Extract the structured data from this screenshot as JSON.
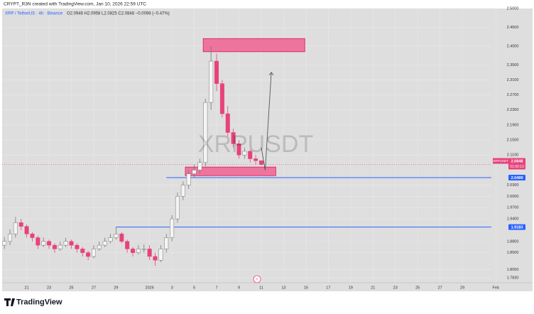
{
  "header": {
    "credit": "CRYPT_R3N created with TradingView.com, Jan 10, 2026 22:59 UTC",
    "brand": "TradingView"
  },
  "chart_data": {
    "type": "candlestick",
    "title": "XRP / TetherUS · 4h · Binance",
    "ohlc_text": "O2.0946 H2.0958 L2.0825 C2.0848 −0.0098 (−0.47%)",
    "watermark": "XRPUSDT",
    "x": [
      19,
      19.5,
      20,
      20.5,
      21,
      21.5,
      22,
      22.5,
      23,
      23.5,
      24,
      24.5,
      25,
      25.5,
      26,
      26.5,
      27,
      27.5,
      28,
      28.5,
      29,
      29.5,
      30,
      30.5,
      31,
      31.5,
      32,
      32.5,
      33,
      33.5,
      34,
      34.5,
      35,
      35.5,
      36,
      36.5,
      37,
      37.5,
      38,
      38.5,
      39,
      39.5,
      40,
      40.5,
      41,
      41.5,
      42
    ],
    "open": [
      1.87,
      1.88,
      1.9,
      1.93,
      1.92,
      1.9,
      1.89,
      1.87,
      1.88,
      1.87,
      1.86,
      1.87,
      1.88,
      1.87,
      1.86,
      1.85,
      1.84,
      1.86,
      1.87,
      1.88,
      1.89,
      1.9,
      1.88,
      1.86,
      1.85,
      1.86,
      1.86,
      1.84,
      1.83,
      1.86,
      1.89,
      1.94,
      2.0,
      2.03,
      2.06,
      2.07,
      2.09,
      2.25,
      2.36,
      2.3,
      2.22,
      2.17,
      2.14,
      2.11,
      2.12,
      2.1,
      2.095
    ],
    "high": [
      1.892,
      1.912,
      1.945,
      1.94,
      1.925,
      1.905,
      1.895,
      1.89,
      1.885,
      1.875,
      1.88,
      1.89,
      1.885,
      1.875,
      1.865,
      1.855,
      1.87,
      1.88,
      1.89,
      1.9,
      1.9183,
      1.905,
      1.885,
      1.865,
      1.87,
      1.872,
      1.87,
      1.85,
      1.87,
      1.9,
      1.95,
      2.01,
      2.04,
      2.07,
      2.085,
      2.1,
      2.26,
      2.4,
      2.38,
      2.31,
      2.24,
      2.18,
      2.15,
      2.13,
      2.125,
      2.11,
      2.0958
    ],
    "low": [
      1.86,
      1.87,
      1.89,
      1.91,
      1.89,
      1.88,
      1.86,
      1.865,
      1.86,
      1.85,
      1.855,
      1.865,
      1.86,
      1.85,
      1.84,
      1.83,
      1.835,
      1.855,
      1.865,
      1.875,
      1.885,
      1.875,
      1.85,
      1.84,
      1.845,
      1.85,
      1.83,
      1.815,
      1.825,
      1.85,
      1.88,
      1.93,
      1.99,
      2.02,
      2.05,
      2.06,
      2.08,
      2.23,
      2.28,
      2.21,
      2.16,
      2.13,
      2.1,
      2.1,
      2.09,
      2.085,
      2.0825
    ],
    "close": [
      1.88,
      1.9,
      1.93,
      1.92,
      1.9,
      1.89,
      1.87,
      1.88,
      1.87,
      1.86,
      1.87,
      1.88,
      1.87,
      1.86,
      1.85,
      1.84,
      1.86,
      1.87,
      1.88,
      1.89,
      1.9,
      1.88,
      1.86,
      1.85,
      1.86,
      1.86,
      1.84,
      1.83,
      1.86,
      1.89,
      1.94,
      2.0,
      2.03,
      2.06,
      2.07,
      2.09,
      2.25,
      2.36,
      2.3,
      2.22,
      2.17,
      2.14,
      2.11,
      2.12,
      2.1,
      2.095,
      2.0848
    ],
    "up_color": "#f4f4f4",
    "down_color": "#e8427c",
    "xlim": [
      18.8,
      62.6
    ],
    "xticks": [
      21,
      23,
      25,
      27,
      29,
      {
        "value": 32,
        "label": "2026"
      },
      {
        "value": 34,
        "label": "3"
      },
      {
        "value": 36,
        "label": "5"
      },
      {
        "value": 38,
        "label": "7"
      },
      {
        "value": 40,
        "label": "9"
      },
      {
        "value": 42,
        "label": "11"
      },
      {
        "value": 44,
        "label": "13"
      },
      {
        "value": 46,
        "label": "15"
      },
      {
        "value": 48,
        "label": "17"
      },
      {
        "value": 50,
        "label": "19"
      },
      {
        "value": 52,
        "label": "21"
      },
      {
        "value": 54,
        "label": "23"
      },
      {
        "value": 56,
        "label": "25"
      },
      {
        "value": 58,
        "label": "27"
      },
      {
        "value": 60,
        "label": "29"
      },
      {
        "value": 63,
        "label": "Feb"
      }
    ],
    "ylim": [
      1.77,
      2.5
    ],
    "yticks": [
      {
        "value": 2.5,
        "label": "2.5000"
      },
      {
        "value": 2.45,
        "label": "2.4500"
      },
      {
        "value": 2.4,
        "label": "2.4000"
      },
      {
        "value": 2.35,
        "label": "2.3500"
      },
      {
        "value": 2.31,
        "label": "2.3100"
      },
      {
        "value": 2.27,
        "label": "2.2700"
      },
      {
        "value": 2.23,
        "label": "2.2300"
      },
      {
        "value": 2.19,
        "label": "2.1900"
      },
      {
        "value": 2.15,
        "label": "2.1500"
      },
      {
        "value": 2.11,
        "label": "2.1100"
      },
      {
        "value": 2.03,
        "label": "2.0300"
      },
      {
        "value": 2.0,
        "label": "2.0000"
      },
      {
        "value": 1.97,
        "label": "1.9700"
      },
      {
        "value": 1.94,
        "label": "1.9400"
      },
      {
        "value": 1.88,
        "label": "1.8800"
      },
      {
        "value": 1.85,
        "label": "1.8500"
      },
      {
        "value": 1.805,
        "label": "1.8050"
      },
      {
        "value": 1.783,
        "label": "1.7830"
      }
    ],
    "grid": true,
    "last_price": {
      "symbol": "XRPUSDT",
      "value": 2.0848,
      "label": "2.0848",
      "countdown": "01:00:13",
      "color": "#e8427c"
    },
    "price_lines": [
      {
        "value": 2.0499,
        "label": "2.0499",
        "from": 33.5,
        "color": "#2962ff"
      },
      {
        "value": 1.9183,
        "label": "1.9183",
        "from": 29,
        "color": "#2962ff"
      }
    ],
    "zones": [
      {
        "from": 36.8,
        "to": 45.9,
        "low": 2.385,
        "high": 2.42
      },
      {
        "from": 35.2,
        "to": 43.3,
        "low": 2.055,
        "high": 2.078
      }
    ],
    "zone_color": "#f06292",
    "arrow": {
      "x": [
        42.0,
        42.35,
        42.9
      ],
      "y": [
        2.13,
        2.07,
        2.33
      ]
    }
  }
}
